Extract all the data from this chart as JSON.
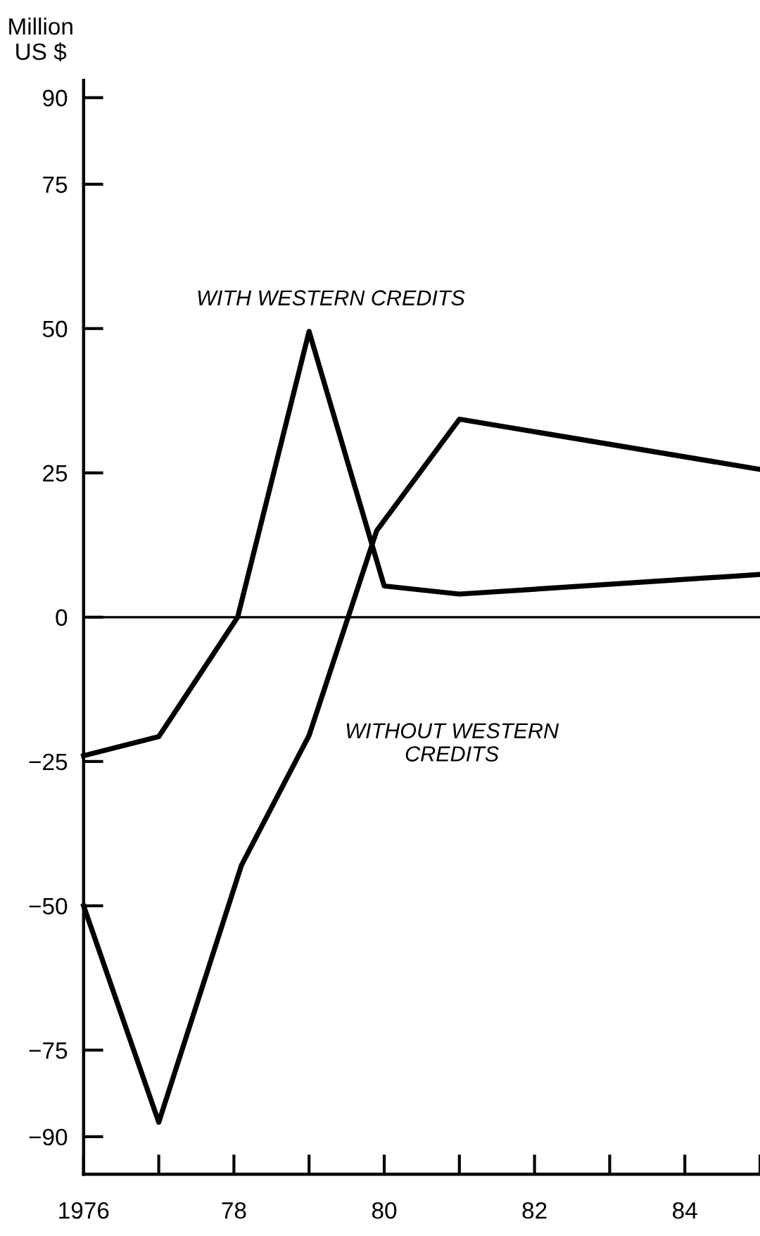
{
  "chart_data": {
    "type": "line",
    "ylabel": "Million\nUS $",
    "series": [
      {
        "name": "WITH WESTERN CREDITS",
        "color": "#000000",
        "x": [
          1976,
          1977,
          1978.05,
          1979,
          1980,
          1981,
          1985
        ],
        "values": [
          -24,
          -20.7,
          0,
          49.5,
          5.4,
          4,
          7.4
        ]
      },
      {
        "name": "WITHOUT WESTERN\nCREDITS",
        "color": "#000000",
        "x": [
          1976,
          1977,
          1978.1,
          1979,
          1979.9,
          1981,
          1985
        ],
        "values": [
          -50,
          -87.5,
          -43,
          -20.5,
          15,
          34.3,
          25.6
        ]
      }
    ],
    "xlim": [
      1976,
      1985
    ],
    "ylim": [
      -96.5,
      93
    ],
    "xticks": [
      {
        "value": 1976,
        "label": "1976"
      },
      {
        "value": 1977,
        "label": null
      },
      {
        "value": 1978,
        "label": "78"
      },
      {
        "value": 1979,
        "label": null
      },
      {
        "value": 1980,
        "label": "80"
      },
      {
        "value": 1981,
        "label": null
      },
      {
        "value": 1982,
        "label": "82"
      },
      {
        "value": 1983,
        "label": null
      },
      {
        "value": 1984,
        "label": "84"
      },
      {
        "value": 1985,
        "label": null
      }
    ],
    "yticks": [
      {
        "value": -90,
        "label": "−90"
      },
      {
        "value": -75,
        "label": "−75"
      },
      {
        "value": -50,
        "label": "−50"
      },
      {
        "value": -25,
        "label": "−25"
      },
      0,
      25,
      50,
      75,
      90
    ],
    "ref_lines": [
      {
        "axis": "y",
        "value": 0,
        "label": null,
        "color": "#000000"
      }
    ],
    "grid": false,
    "legend": false,
    "marker": "none",
    "line_style": "solid"
  }
}
